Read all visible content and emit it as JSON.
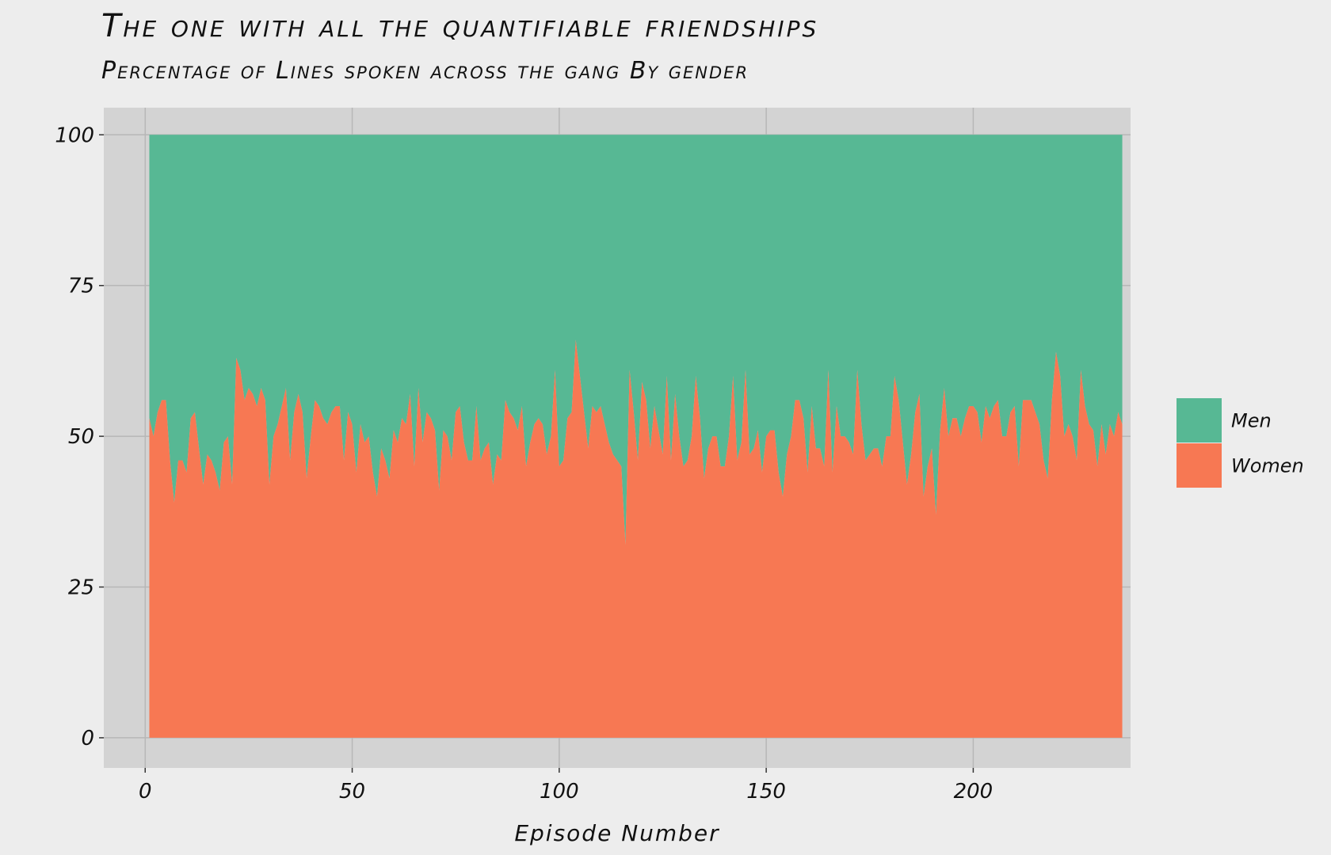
{
  "chart_data": {
    "type": "area",
    "title": "The one with all the quantifiable friendships",
    "subtitle": "Percentage of Lines spoken across the gang By gender",
    "xlabel": "Episode Number",
    "ylabel": "",
    "xlim": [
      -10,
      238
    ],
    "ylim": [
      -5,
      104.5
    ],
    "x_ticks": [
      0,
      50,
      100,
      150,
      200
    ],
    "y_ticks": [
      0,
      25,
      50,
      75,
      100
    ],
    "grid": true,
    "legend_position": "right",
    "stacked_to_100": true,
    "colors": {
      "Men": "#57b894",
      "Women": "#f77853",
      "panel": "#d3d3d3",
      "grid": "#b7b7b7"
    },
    "series": [
      {
        "name": "Men",
        "total": 100
      },
      {
        "name": "Women",
        "values": [
          53,
          50,
          54,
          56,
          56,
          46,
          39,
          46,
          46,
          44,
          53,
          54,
          48,
          42,
          47,
          46,
          44,
          41,
          49,
          50,
          42,
          63,
          61,
          56,
          58,
          57,
          55,
          58,
          56,
          42,
          50,
          52,
          55,
          58,
          46,
          54,
          57,
          54,
          43,
          50,
          56,
          55,
          53,
          52,
          54,
          55,
          55,
          46,
          54,
          52,
          44,
          52,
          49,
          50,
          44,
          40,
          48,
          46,
          43,
          51,
          49,
          53,
          52,
          57,
          45,
          58,
          49,
          54,
          53,
          51,
          41,
          51,
          50,
          46,
          54,
          55,
          49,
          46,
          46,
          55,
          46,
          48,
          49,
          42,
          47,
          46,
          56,
          54,
          53,
          51,
          55,
          45,
          49,
          52,
          53,
          52,
          47,
          50,
          61,
          45,
          46,
          53,
          54,
          66,
          60,
          54,
          48,
          55,
          54,
          55,
          52,
          49,
          47,
          46,
          45,
          32,
          61,
          54,
          46,
          59,
          56,
          48,
          55,
          51,
          47,
          60,
          46,
          57,
          50,
          45,
          46,
          50,
          60,
          53,
          43,
          48,
          50,
          50,
          45,
          45,
          50,
          60,
          46,
          49,
          61,
          47,
          48,
          51,
          44,
          50,
          51,
          51,
          44,
          40,
          47,
          50,
          56,
          56,
          53,
          44,
          55,
          48,
          48,
          45,
          61,
          44,
          55,
          50,
          50,
          49,
          47,
          61,
          52,
          46,
          47,
          48,
          48,
          45,
          50,
          50,
          60,
          56,
          49,
          42,
          47,
          54,
          57,
          40,
          45,
          48,
          37,
          51,
          58,
          50,
          53,
          53,
          50,
          53,
          55,
          55,
          54,
          49,
          55,
          53,
          55,
          56,
          50,
          50,
          54,
          55,
          45,
          56,
          56,
          56,
          54,
          52,
          46,
          43,
          56,
          64,
          60,
          50,
          52,
          50,
          46,
          61,
          55,
          52,
          51,
          45,
          52,
          47,
          52,
          50,
          54,
          52
        ]
      }
    ]
  }
}
